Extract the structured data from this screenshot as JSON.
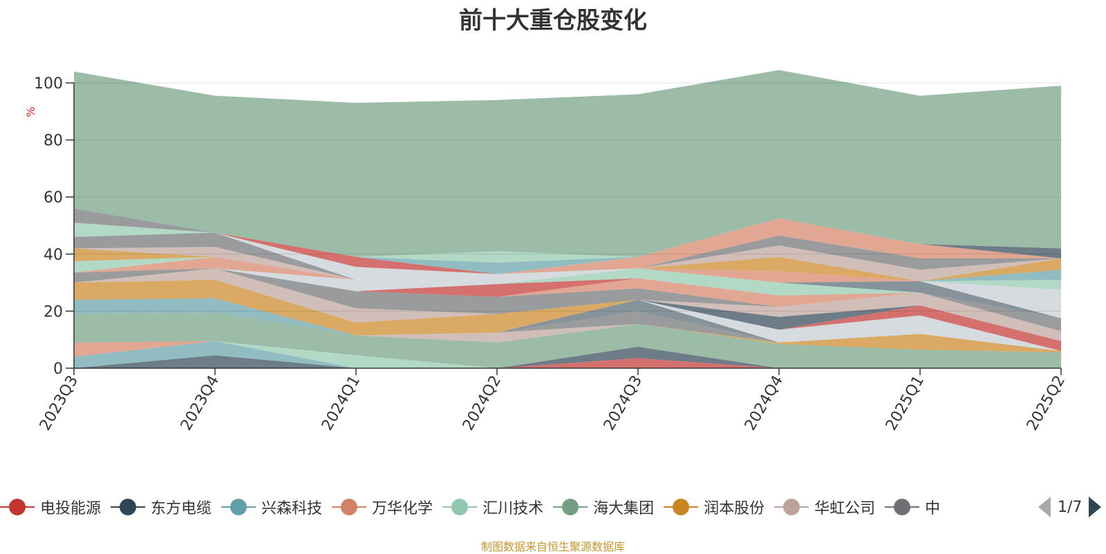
{
  "title": "前十大重仓股变化",
  "source_note": "制图数据来自恒生聚源数据库",
  "legend": {
    "page": "1/7",
    "items": [
      {
        "label": "电投能源",
        "color": "#c23531"
      },
      {
        "label": "东方电缆",
        "color": "#2f4554"
      },
      {
        "label": "兴森科技",
        "color": "#61a0a8"
      },
      {
        "label": "万华化学",
        "color": "#d48265"
      },
      {
        "label": "汇川技术",
        "color": "#91c7ae"
      },
      {
        "label": "海大集团",
        "color": "#749f83"
      },
      {
        "label": "润本股份",
        "color": "#ca8622"
      },
      {
        "label": "华虹公司",
        "color": "#bda29a"
      },
      {
        "label": "中",
        "color": "#6e7074"
      }
    ]
  },
  "chart_data": {
    "type": "area",
    "stacked": true,
    "categories": [
      "2023Q3",
      "2023Q4",
      "2024Q1",
      "2024Q2",
      "2024Q3",
      "2024Q4",
      "2025Q1",
      "2025Q2"
    ],
    "ylabel": "%",
    "ylim": [
      0,
      100
    ],
    "yticks": [
      0,
      20,
      40,
      60,
      80,
      100
    ],
    "grid": true,
    "legend_position": "bottom",
    "series": [
      {
        "color": "#c23531",
        "values": [
          0,
          0,
          0,
          0,
          3.5,
          0,
          0,
          0
        ]
      },
      {
        "color": "#2f4554",
        "values": [
          0,
          4.5,
          0,
          0,
          4,
          0,
          0,
          0
        ]
      },
      {
        "color": "#61a0a8",
        "values": [
          4,
          5,
          0,
          0,
          0,
          0,
          0,
          0
        ]
      },
      {
        "color": "#d48265",
        "values": [
          5,
          0,
          0,
          0,
          0,
          0,
          0,
          0
        ]
      },
      {
        "color": "#91c7ae",
        "values": [
          0,
          0,
          4.5,
          0,
          0,
          0,
          0,
          0
        ]
      },
      {
        "color": "#749f83",
        "values": [
          10,
          10,
          7,
          9,
          8,
          8.5,
          6.5,
          5.5
        ]
      },
      {
        "color": "#ca8622",
        "values": [
          0,
          0,
          0,
          0,
          0,
          0.5,
          5.5,
          0.5
        ]
      },
      {
        "color": "#bda29a",
        "values": [
          0,
          0,
          0,
          3.5,
          0,
          0,
          0,
          0
        ]
      },
      {
        "color": "#6e7074",
        "values": [
          0,
          0,
          0,
          0,
          4.5,
          0,
          0,
          0
        ]
      },
      {
        "color": "#546570",
        "values": [
          0,
          0,
          0,
          0,
          4,
          0,
          0,
          0
        ]
      },
      {
        "color": "#c4ccd3",
        "values": [
          0,
          0,
          0,
          0,
          0,
          4.5,
          6.5,
          0
        ]
      },
      {
        "color": "#c23531",
        "values": [
          0,
          0,
          0,
          0,
          0,
          0,
          3.5,
          3.5
        ]
      },
      {
        "color": "#2f4554",
        "values": [
          0,
          0,
          0,
          0,
          0,
          4.5,
          0,
          0
        ]
      },
      {
        "color": "#61a0a8",
        "values": [
          5,
          5,
          0,
          0,
          0,
          0,
          0,
          0
        ]
      },
      {
        "color": "#ca8622",
        "values": [
          6,
          6.5,
          4.5,
          6.5,
          0,
          0,
          0,
          0
        ]
      },
      {
        "color": "#bda29a",
        "values": [
          0,
          4,
          5,
          0,
          0,
          3.5,
          4.5,
          3.5
        ]
      },
      {
        "color": "#6e7074",
        "values": [
          3.5,
          0,
          6,
          6,
          4,
          0,
          0,
          4.5
        ]
      },
      {
        "color": "#d48265",
        "values": [
          0,
          0,
          0,
          0,
          3.5,
          4,
          0,
          0
        ]
      },
      {
        "color": "#c23531",
        "values": [
          0,
          0,
          0,
          4.5,
          0,
          0,
          0,
          0
        ]
      },
      {
        "color": "#91c7ae",
        "values": [
          0,
          0,
          0,
          0,
          3.5,
          4.5,
          0,
          0
        ]
      },
      {
        "color": "#546570",
        "values": [
          0,
          0,
          0,
          0,
          0,
          0,
          4,
          0
        ]
      },
      {
        "color": "#c4ccd3",
        "values": [
          0,
          0,
          4,
          3.5,
          0,
          0,
          0,
          10
        ]
      },
      {
        "color": "#d48265",
        "values": [
          0,
          4,
          0,
          0,
          0,
          4,
          0,
          0
        ]
      },
      {
        "color": "#91c7ae",
        "values": [
          4,
          0,
          0,
          0,
          0,
          0,
          0,
          3.5
        ]
      },
      {
        "color": "#61a0a8",
        "values": [
          0,
          0,
          0,
          0,
          0,
          0,
          0,
          3.5
        ]
      },
      {
        "color": "#ca8622",
        "values": [
          4.5,
          0,
          0,
          0,
          0,
          5,
          0,
          4
        ]
      },
      {
        "color": "#bda29a",
        "values": [
          0,
          3.5,
          0,
          0,
          0,
          4,
          4,
          0
        ]
      },
      {
        "color": "#6e7074",
        "values": [
          4,
          5,
          0,
          0,
          0,
          3.5,
          4,
          0
        ]
      },
      {
        "color": "#c4ccd3",
        "values": [
          0,
          0,
          4.5,
          0,
          0,
          0,
          0,
          0
        ]
      },
      {
        "color": "#d48265",
        "values": [
          0,
          0,
          0,
          0,
          4,
          6,
          5,
          0
        ]
      },
      {
        "color": "#2f4554",
        "values": [
          0,
          0,
          0,
          0,
          0,
          0,
          0,
          3.5
        ]
      },
      {
        "color": "#c23531",
        "values": [
          0,
          0,
          3.5,
          0,
          0,
          0,
          0,
          0
        ]
      },
      {
        "color": "#61a0a8",
        "values": [
          0,
          0,
          0,
          4,
          0,
          0,
          0,
          0
        ]
      },
      {
        "color": "#91c7ae",
        "values": [
          5,
          0,
          0,
          4,
          0,
          0,
          0,
          0
        ]
      },
      {
        "color": "#6e7074",
        "values": [
          5,
          0,
          0,
          0,
          0,
          0,
          0,
          0
        ]
      },
      {
        "color": "#749f83",
        "values": [
          48,
          48,
          54,
          53,
          57,
          52,
          52,
          57
        ]
      }
    ]
  }
}
